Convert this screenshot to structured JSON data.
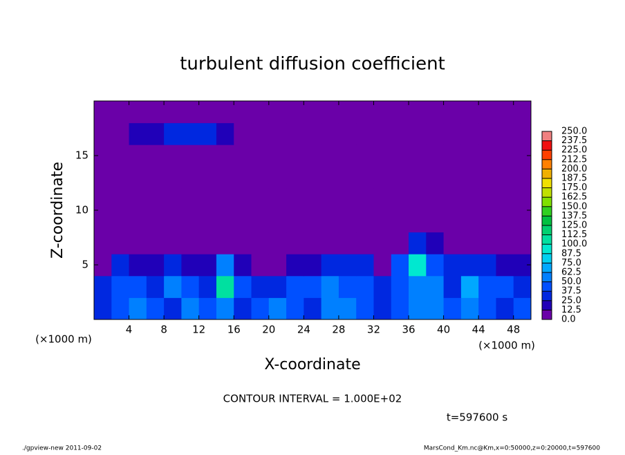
{
  "chart_data": {
    "type": "heatmap",
    "title": "turbulent diffusion coefficient",
    "x_label": "X-coordinate",
    "y_label": "Z-coordinate",
    "x_unit": "(×1000 m)",
    "y_unit": "(×1000 m)",
    "annotation": "CONTOUR INTERVAL = 1.000E+02",
    "time_label": "t=597600 s",
    "footer_left": "./gpview-new  2011-09-02",
    "footer_right": "MarsCond_Km.nc@Km,x=0:50000,z=0:20000,t=597600",
    "xlim": [
      0,
      50
    ],
    "ylim": [
      0,
      20
    ],
    "xticks": [
      4,
      8,
      12,
      16,
      20,
      24,
      28,
      32,
      36,
      40,
      44,
      48
    ],
    "yticks": [
      5,
      10,
      15
    ],
    "x": [
      1,
      3,
      5,
      7,
      9,
      11,
      13,
      15,
      17,
      19,
      21,
      23,
      25,
      27,
      29,
      31,
      33,
      35,
      37,
      39,
      41,
      43,
      45,
      47,
      49
    ],
    "y": [
      1,
      3,
      5,
      7,
      9,
      11,
      13,
      15,
      17,
      19
    ],
    "values": [
      [
        30,
        40,
        50,
        45,
        35,
        60,
        40,
        55,
        30,
        45,
        50,
        40,
        35,
        60,
        55,
        40,
        30,
        45,
        55,
        60,
        40,
        50,
        45,
        35,
        40
      ],
      [
        35,
        45,
        40,
        25,
        50,
        45,
        30,
        110,
        40,
        35,
        25,
        45,
        40,
        55,
        45,
        40,
        35,
        40,
        60,
        50,
        30,
        65,
        45,
        40,
        35
      ],
      [
        10,
        25,
        20,
        15,
        30,
        20,
        15,
        60,
        15,
        5,
        0,
        20,
        15,
        25,
        30,
        35,
        5,
        40,
        90,
        45,
        25,
        30,
        35,
        15,
        20
      ],
      [
        0,
        0,
        0,
        0,
        0,
        0,
        0,
        0,
        0,
        0,
        0,
        0,
        0,
        0,
        0,
        0,
        0,
        0,
        25,
        15,
        0,
        0,
        0,
        0,
        0
      ],
      [
        0,
        0,
        0,
        0,
        0,
        0,
        0,
        0,
        0,
        0,
        0,
        0,
        0,
        0,
        0,
        0,
        0,
        0,
        0,
        0,
        0,
        0,
        0,
        0,
        0
      ],
      [
        0,
        0,
        0,
        0,
        0,
        0,
        0,
        0,
        0,
        0,
        0,
        0,
        0,
        0,
        0,
        0,
        0,
        0,
        0,
        0,
        0,
        0,
        0,
        0,
        0
      ],
      [
        0,
        0,
        0,
        0,
        0,
        0,
        0,
        0,
        0,
        0,
        0,
        0,
        0,
        0,
        0,
        0,
        0,
        0,
        0,
        0,
        0,
        0,
        0,
        0,
        0
      ],
      [
        0,
        0,
        0,
        0,
        0,
        0,
        0,
        0,
        0,
        0,
        0,
        0,
        0,
        0,
        0,
        0,
        0,
        0,
        0,
        0,
        0,
        0,
        0,
        0,
        0
      ],
      [
        0,
        0,
        15,
        20,
        25,
        30,
        25,
        20,
        0,
        0,
        0,
        0,
        0,
        0,
        0,
        0,
        0,
        0,
        0,
        0,
        0,
        0,
        0,
        0,
        0
      ],
      [
        0,
        0,
        0,
        0,
        0,
        0,
        0,
        0,
        0,
        0,
        0,
        0,
        0,
        0,
        0,
        0,
        0,
        0,
        0,
        0,
        0,
        0,
        0,
        0,
        0
      ]
    ],
    "levels": [
      {
        "value": 0,
        "label": "0.0"
      },
      {
        "value": 12.5,
        "label": "12.5"
      },
      {
        "value": 25,
        "label": "25.0"
      },
      {
        "value": 37.5,
        "label": "37.5"
      },
      {
        "value": 50,
        "label": "50.0"
      },
      {
        "value": 62.5,
        "label": "62.5"
      },
      {
        "value": 75,
        "label": "75.0"
      },
      {
        "value": 87.5,
        "label": "87.5"
      },
      {
        "value": 100,
        "label": "100.0"
      },
      {
        "value": 112.5,
        "label": "112.5"
      },
      {
        "value": 125,
        "label": "125.0"
      },
      {
        "value": 137.5,
        "label": "137.5"
      },
      {
        "value": 150,
        "label": "150.0"
      },
      {
        "value": 162.5,
        "label": "162.5"
      },
      {
        "value": 175,
        "label": "175.0"
      },
      {
        "value": 187.5,
        "label": "187.5"
      },
      {
        "value": 200,
        "label": "200.0"
      },
      {
        "value": 212.5,
        "label": "212.5"
      },
      {
        "value": 225,
        "label": "225.0"
      },
      {
        "value": 237.5,
        "label": "237.5"
      },
      {
        "value": 250,
        "label": "250.0"
      }
    ],
    "colors": [
      "#6a00a8",
      "#2000b8",
      "#0028e0",
      "#0050ff",
      "#0080ff",
      "#00a8ff",
      "#00d0f0",
      "#00e8d0",
      "#00e0a0",
      "#00d070",
      "#00c040",
      "#30d020",
      "#80e000",
      "#c0e000",
      "#f0e000",
      "#f0b000",
      "#ff8000",
      "#ff4000",
      "#f01010",
      "#f08080"
    ]
  }
}
